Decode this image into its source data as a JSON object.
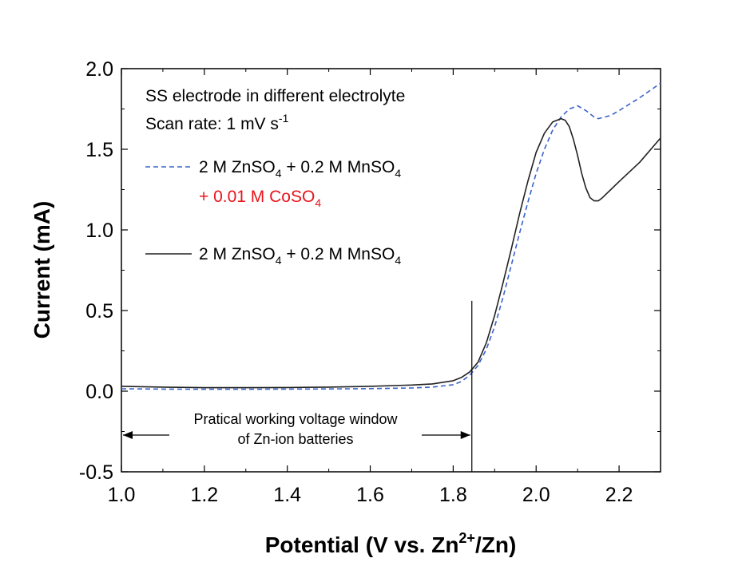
{
  "chart_data": {
    "type": "line",
    "xlabel": "Potential (V vs. Zn2+/Zn)",
    "xlabel_parts": {
      "main": "Potential (V vs. Zn",
      "sup": "2+",
      "tail": "/Zn)"
    },
    "ylabel": "Current (mA)",
    "xlim": [
      1.0,
      2.3
    ],
    "ylim": [
      -0.5,
      2.0
    ],
    "xticks": [
      "1.0",
      "1.2",
      "1.4",
      "1.6",
      "1.8",
      "2.0",
      "2.2"
    ],
    "xtick_values": [
      1.0,
      1.2,
      1.4,
      1.6,
      1.8,
      2.0,
      2.2
    ],
    "yticks": [
      "-0.5",
      "0.0",
      "0.5",
      "1.0",
      "1.5",
      "2.0"
    ],
    "ytick_values": [
      -0.5,
      0.0,
      0.5,
      1.0,
      1.5,
      2.0
    ],
    "grid": false,
    "legend_position": "top-left",
    "annotations": {
      "header_line1": "SS electrode in different electrolyte",
      "header_line2_main": "Scan rate: 1 mV s",
      "header_line2_sup": "-1",
      "window_line1": "Pratical working voltage window",
      "window_line2": "of Zn-ion batteries",
      "window_bounds": [
        1.0,
        1.845
      ],
      "window_marker_x": 1.845,
      "window_marker_top": 0.56
    },
    "series": [
      {
        "name": "2 M ZnSO4 + 0.2 M MnSO4 + 0.01 M CoSO4",
        "legend_parts": [
          "2 M ZnSO",
          "4",
          " + 0.2 M MnSO",
          "4"
        ],
        "legend_line2_parts": [
          "+ 0.01 M CoSO",
          "4"
        ],
        "color": "#3a62c8",
        "line_color_second": "#e8141c",
        "style": "dashed",
        "x": [
          1.0,
          1.1,
          1.2,
          1.3,
          1.4,
          1.5,
          1.6,
          1.7,
          1.75,
          1.8,
          1.82,
          1.84,
          1.86,
          1.88,
          1.9,
          1.92,
          1.94,
          1.96,
          1.98,
          2.0,
          2.02,
          2.04,
          2.06,
          2.08,
          2.1,
          2.12,
          2.14,
          2.15,
          2.18,
          2.2,
          2.25,
          2.3
        ],
        "y": [
          0.015,
          0.013,
          0.012,
          0.012,
          0.013,
          0.014,
          0.016,
          0.02,
          0.025,
          0.04,
          0.06,
          0.1,
          0.16,
          0.26,
          0.4,
          0.58,
          0.78,
          0.98,
          1.17,
          1.35,
          1.5,
          1.62,
          1.7,
          1.75,
          1.77,
          1.74,
          1.7,
          1.69,
          1.71,
          1.74,
          1.82,
          1.91
        ]
      },
      {
        "name": "2 M ZnSO4 + 0.2 M MnSO4",
        "legend_parts": [
          "2 M ZnSO",
          "4",
          " + 0.2 M MnSO",
          "4"
        ],
        "color": "#222222",
        "style": "solid",
        "x": [
          1.0,
          1.1,
          1.2,
          1.3,
          1.4,
          1.5,
          1.6,
          1.7,
          1.75,
          1.8,
          1.82,
          1.84,
          1.86,
          1.88,
          1.9,
          1.92,
          1.94,
          1.96,
          1.98,
          2.0,
          2.02,
          2.04,
          2.06,
          2.07,
          2.08,
          2.09,
          2.1,
          2.11,
          2.12,
          2.13,
          2.14,
          2.15,
          2.16,
          2.18,
          2.2,
          2.25,
          2.3
        ],
        "y": [
          0.03,
          0.025,
          0.022,
          0.022,
          0.023,
          0.025,
          0.03,
          0.038,
          0.045,
          0.065,
          0.085,
          0.12,
          0.18,
          0.3,
          0.47,
          0.67,
          0.88,
          1.1,
          1.3,
          1.48,
          1.6,
          1.67,
          1.69,
          1.68,
          1.64,
          1.56,
          1.46,
          1.35,
          1.26,
          1.2,
          1.18,
          1.18,
          1.2,
          1.25,
          1.3,
          1.42,
          1.57
        ]
      }
    ]
  }
}
